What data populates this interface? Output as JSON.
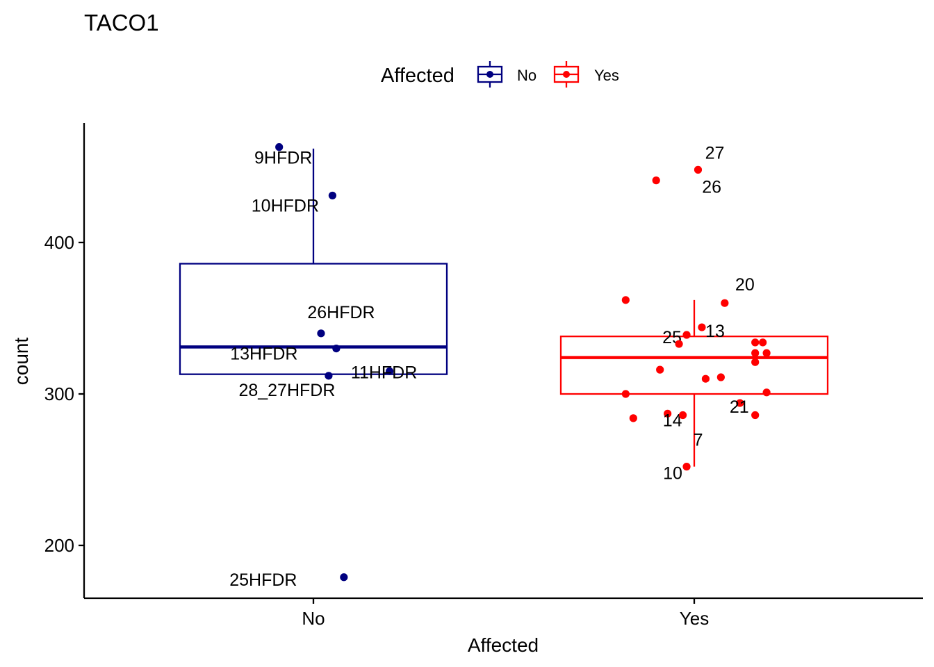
{
  "chart_data": {
    "type": "box",
    "title": "TACO1",
    "xlabel": "Affected",
    "ylabel": "count",
    "categories": [
      "No",
      "Yes"
    ],
    "ylim": [
      165,
      477
    ],
    "yticks": [
      200,
      300,
      400
    ],
    "grid": false,
    "legend": {
      "title": "Affected",
      "position": "top",
      "entries": [
        {
          "label": "No",
          "color": "#000080"
        },
        {
          "label": "Yes",
          "color": "#ff0000"
        }
      ]
    },
    "series": [
      {
        "name": "No",
        "color": "#000080",
        "box": {
          "whisker_low": 313,
          "q1": 313,
          "median": 331,
          "q3": 386,
          "whisker_high": 462
        },
        "points": [
          {
            "x": -0.09,
            "y": 463,
            "label": "9HFDR"
          },
          {
            "x": 0.05,
            "y": 431,
            "label": "10HFDR"
          },
          {
            "x": 0.02,
            "y": 340,
            "label": "26HFDR"
          },
          {
            "x": 0.06,
            "y": 330,
            "label": "13HFDR"
          },
          {
            "x": 0.2,
            "y": 315,
            "label": "11HFDR"
          },
          {
            "x": 0.04,
            "y": 312,
            "label": "28_27HFDR"
          },
          {
            "x": 0.08,
            "y": 179,
            "label": "25HFDR"
          }
        ]
      },
      {
        "name": "Yes",
        "color": "#ff0000",
        "box": {
          "whisker_low": 252,
          "q1": 300,
          "median": 324,
          "q3": 338,
          "whisker_high": 362
        },
        "points": [
          {
            "x": 0.01,
            "y": 448,
            "label": "27"
          },
          {
            "x": -0.1,
            "y": 441,
            "label": "26"
          },
          {
            "x": 0.08,
            "y": 360,
            "label": "20"
          },
          {
            "x": -0.18,
            "y": 362,
            "label": ""
          },
          {
            "x": -0.02,
            "y": 339,
            "label": "25"
          },
          {
            "x": 0.02,
            "y": 344,
            "label": "13"
          },
          {
            "x": -0.04,
            "y": 333,
            "label": ""
          },
          {
            "x": 0.16,
            "y": 334,
            "label": ""
          },
          {
            "x": 0.18,
            "y": 334,
            "label": ""
          },
          {
            "x": 0.16,
            "y": 327,
            "label": ""
          },
          {
            "x": 0.19,
            "y": 327,
            "label": ""
          },
          {
            "x": 0.16,
            "y": 321,
            "label": ""
          },
          {
            "x": -0.09,
            "y": 316,
            "label": ""
          },
          {
            "x": 0.03,
            "y": 310,
            "label": ""
          },
          {
            "x": 0.07,
            "y": 311,
            "label": ""
          },
          {
            "x": 0.19,
            "y": 301,
            "label": ""
          },
          {
            "x": -0.18,
            "y": 300,
            "label": ""
          },
          {
            "x": 0.12,
            "y": 294,
            "label": "21"
          },
          {
            "x": -0.07,
            "y": 287,
            "label": "14"
          },
          {
            "x": 0.16,
            "y": 286,
            "label": ""
          },
          {
            "x": -0.16,
            "y": 284,
            "label": ""
          },
          {
            "x": -0.02,
            "y": 252,
            "label": "10"
          },
          {
            "x": -0.03,
            "y": 286,
            "label": "7"
          }
        ]
      }
    ]
  }
}
